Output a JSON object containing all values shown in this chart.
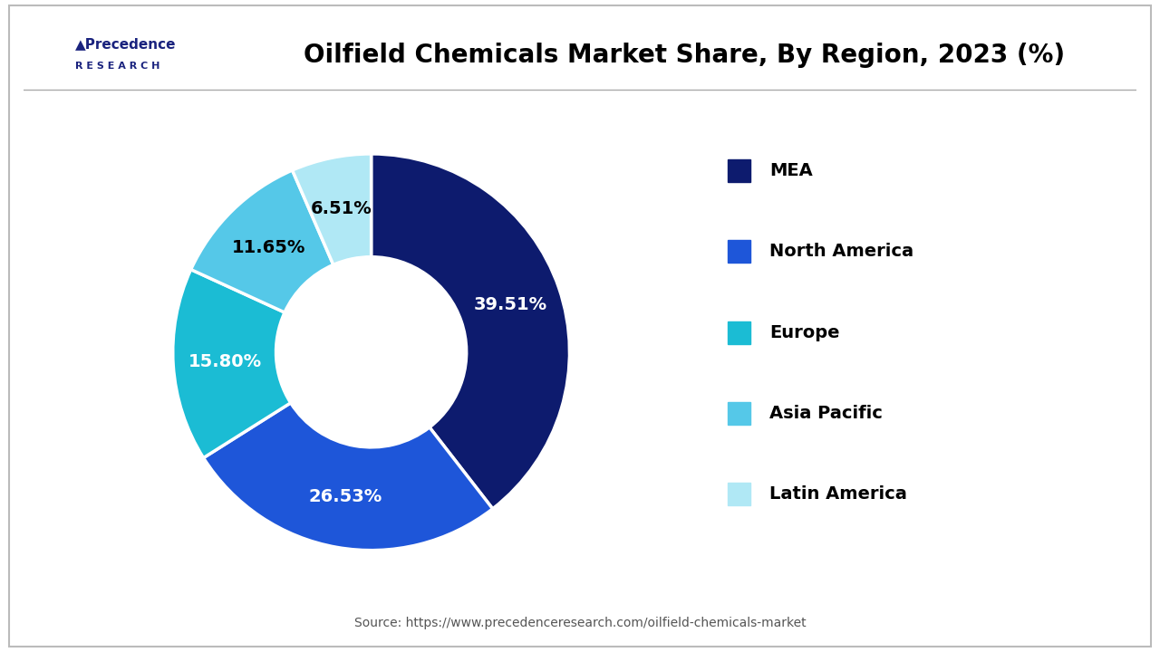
{
  "title": "Oilfield Chemicals Market Share, By Region, 2023 (%)",
  "labels": [
    "MEA",
    "North America",
    "Europe",
    "Asia Pacific",
    "Latin America"
  ],
  "values": [
    39.51,
    26.53,
    15.8,
    11.65,
    6.51
  ],
  "colors": [
    "#0d1b6e",
    "#1e56d9",
    "#1bbcd4",
    "#55c8e8",
    "#b0e8f5"
  ],
  "pct_labels": [
    "39.51%",
    "26.53%",
    "15.80%",
    "11.65%",
    "6.51%"
  ],
  "pct_colors": [
    "white",
    "white",
    "white",
    "black",
    "black"
  ],
  "source_text": "Source: https://www.precedenceresearch.com/oilfield-chemicals-market",
  "background_color": "#ffffff",
  "title_fontsize": 20,
  "legend_fontsize": 14,
  "pct_fontsize": 14
}
